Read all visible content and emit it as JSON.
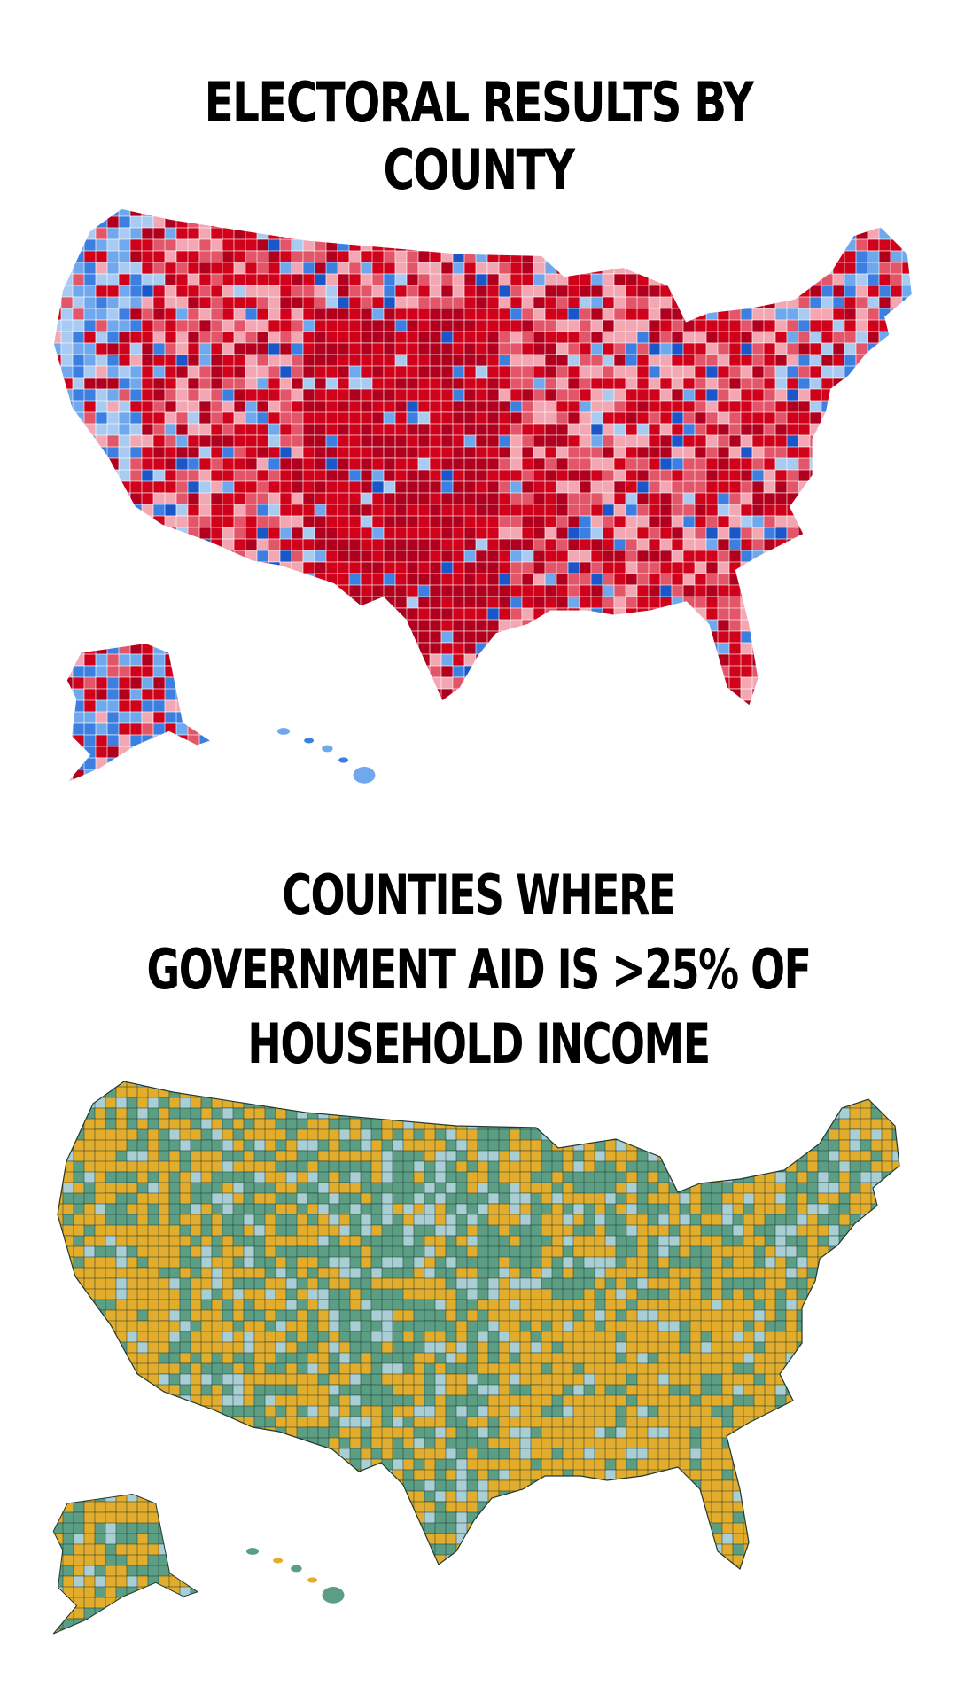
{
  "top_section": {
    "title": "ELECTORAL RESULTS BY COUNTY",
    "map": {
      "subject": "United States counties",
      "palette": {
        "strong_rep": "#b0001e",
        "rep": "#d0021b",
        "lean_rep": "#e3566a",
        "tilt_rep": "#f2a7b3",
        "tilt_dem": "#a9cbf2",
        "lean_dem": "#6fa8ec",
        "dem": "#3d7fe0",
        "strong_dem": "#1b56c8",
        "border": "#ffffff"
      }
    }
  },
  "bottom_section": {
    "title": "COUNTIES WHERE GOVERNMENT AID IS >25% OF HOUSEHOLD INCOME",
    "map": {
      "subject": "United States counties",
      "palette": {
        "above_25_percent": "#e2ac2c",
        "below_25_percent": "#5c9e84",
        "low": "#a9cfd5",
        "border": "#1e3a30"
      }
    }
  }
}
